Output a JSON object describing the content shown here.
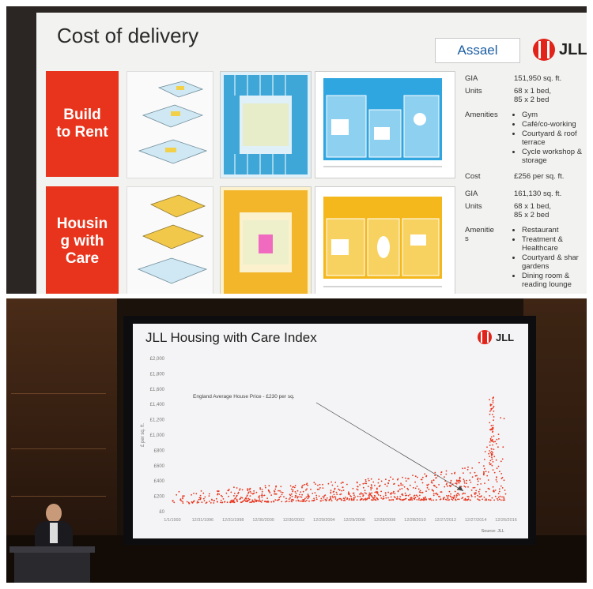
{
  "top_slide": {
    "title": "Cost of delivery",
    "partner_logo": "Assael",
    "brand": "JLL",
    "brand_color": "#e2231a",
    "sections": [
      {
        "label": "Build to Rent",
        "label_lines": [
          "Build",
          "to Rent"
        ],
        "gia_label": "GIA",
        "gia": "151,950 sq. ft.",
        "units_label": "Units",
        "units": [
          "68 x 1 bed,",
          "85 x 2 bed"
        ],
        "amenities_label": "Amenities",
        "amenities": [
          "Gym",
          "Café/co-working",
          "Courtyard & roof terrace",
          "Cycle workshop & storage"
        ],
        "cost_label": "Cost",
        "cost": "£256 per sq. ft."
      },
      {
        "label": "Housing with Care",
        "label_lines": [
          "Housin",
          "g with",
          "Care"
        ],
        "gia_label": "GIA",
        "gia": "161,130 sq. ft.",
        "units_label": "Units",
        "units": [
          "68 x 1 bed,",
          "85 x 2 bed"
        ],
        "amenities_label_lines": [
          "Amenitie",
          "s"
        ],
        "amenities": [
          "Restaurant",
          "Treatment & Healthcare",
          "Courtyard & shar gardens",
          "Dining room & reading lounge"
        ]
      }
    ]
  },
  "bottom_slide": {
    "title": "JLL Housing with Care Index",
    "brand": "JLL",
    "source": "Source: JLL",
    "chart_data": {
      "type": "scatter",
      "title": "JLL Housing with Care Index",
      "ylabel": "£ per sq. ft.",
      "ylim": [
        0,
        2000
      ],
      "yticks": [
        "£2,000",
        "£1,800",
        "£1,600",
        "£1,400",
        "£1,200",
        "£1,000",
        "£800",
        "£600",
        "£400",
        "£200",
        "£0"
      ],
      "xticks": [
        "1/1/1993",
        "12/31/1996",
        "12/31/1998",
        "12/30/2000",
        "12/30/2002",
        "12/29/2004",
        "12/29/2006",
        "12/28/2008",
        "12/28/2010",
        "12/27/2012",
        "12/27/2014",
        "12/26/2016"
      ],
      "annotation": "England Average House Price - £230 per sq.",
      "series_color": "#e8341c",
      "series": [
        {
          "values_by_period": [
            {
              "x": "1/1/1993",
              "y_range": [
                100,
                260
              ]
            },
            {
              "x": "12/31/1998",
              "y_range": [
                120,
                320
              ]
            },
            {
              "x": "12/30/2002",
              "y_range": [
                130,
                360
              ]
            },
            {
              "x": "12/29/2006",
              "y_range": [
                150,
                420
              ]
            },
            {
              "x": "12/28/2010",
              "y_range": [
                150,
                480
              ]
            },
            {
              "x": "12/27/2014",
              "y_range": [
                150,
                600
              ]
            },
            {
              "x": "12/26/2016",
              "y_range": [
                150,
                1400
              ]
            }
          ]
        }
      ]
    }
  }
}
